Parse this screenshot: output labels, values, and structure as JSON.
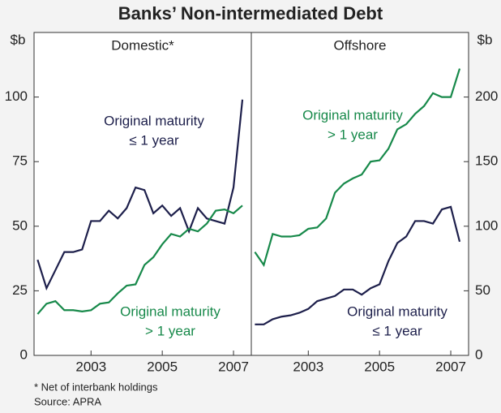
{
  "title": "Banks’ Non-intermediated Debt",
  "footnote": "*   Net of interbank holdings",
  "source": "Source: APRA",
  "chart_data": [
    {
      "type": "line",
      "title": "Domestic*",
      "y_label": "$b",
      "y_side": "left",
      "x": [
        2001.5,
        2001.75,
        2002,
        2002.25,
        2002.5,
        2002.75,
        2003,
        2003.25,
        2003.5,
        2003.75,
        2004,
        2004.25,
        2004.5,
        2004.75,
        2005,
        2005.25,
        2005.5,
        2005.75,
        2006,
        2006.25,
        2006.5,
        2006.75,
        2007,
        2007.25
      ],
      "xlim": [
        2001.4,
        2007.5
      ],
      "xticks": [
        2003,
        2005,
        2007
      ],
      "ylim": [
        0,
        125
      ],
      "yticks": [
        0,
        25,
        50,
        75,
        100
      ],
      "series": [
        {
          "label": [
            "Original maturity",
            "≤ 1 year"
          ],
          "color": "#1d1f4b",
          "values": [
            37,
            26,
            33,
            40,
            40,
            41,
            52,
            52,
            56,
            53,
            57,
            65,
            64,
            55,
            58,
            54,
            57,
            48,
            57,
            53,
            52,
            51,
            65,
            99
          ]
        },
        {
          "label": [
            "Original maturity",
            "> 1 year"
          ],
          "color": "#17894a",
          "values": [
            16,
            20,
            21,
            17.5,
            17.5,
            17,
            17.5,
            20,
            20.5,
            24,
            27,
            27.5,
            35,
            38,
            43,
            47,
            46,
            49,
            48,
            51,
            56,
            56.5,
            55,
            58
          ]
        }
      ]
    },
    {
      "type": "line",
      "title": "Offshore",
      "y_label": "$b",
      "y_side": "right",
      "x": [
        2001.5,
        2001.75,
        2002,
        2002.25,
        2002.5,
        2002.75,
        2003,
        2003.25,
        2003.5,
        2003.75,
        2004,
        2004.25,
        2004.5,
        2004.75,
        2005,
        2005.25,
        2005.5,
        2005.75,
        2006,
        2006.25,
        2006.5,
        2006.75,
        2007,
        2007.25
      ],
      "xlim": [
        2001.4,
        2007.5
      ],
      "xticks": [
        2003,
        2005,
        2007
      ],
      "ylim": [
        0,
        250
      ],
      "yticks": [
        0,
        50,
        100,
        150,
        200
      ],
      "series": [
        {
          "label": [
            "Original maturity",
            "> 1 year"
          ],
          "color": "#17894a",
          "values": [
            80,
            70,
            94,
            92,
            92,
            93,
            98,
            99,
            106,
            126,
            133,
            137,
            140,
            150,
            151,
            160,
            175,
            179,
            187,
            193,
            203,
            200,
            200,
            222
          ]
        },
        {
          "label": [
            "Original maturity",
            "≤ 1 year"
          ],
          "color": "#1d1f4b",
          "values": [
            24,
            24,
            28,
            30,
            31,
            33,
            36,
            42,
            44,
            46,
            51,
            51,
            47,
            52,
            55,
            73,
            87,
            92,
            104,
            104,
            102,
            113,
            115,
            88
          ]
        }
      ]
    }
  ]
}
